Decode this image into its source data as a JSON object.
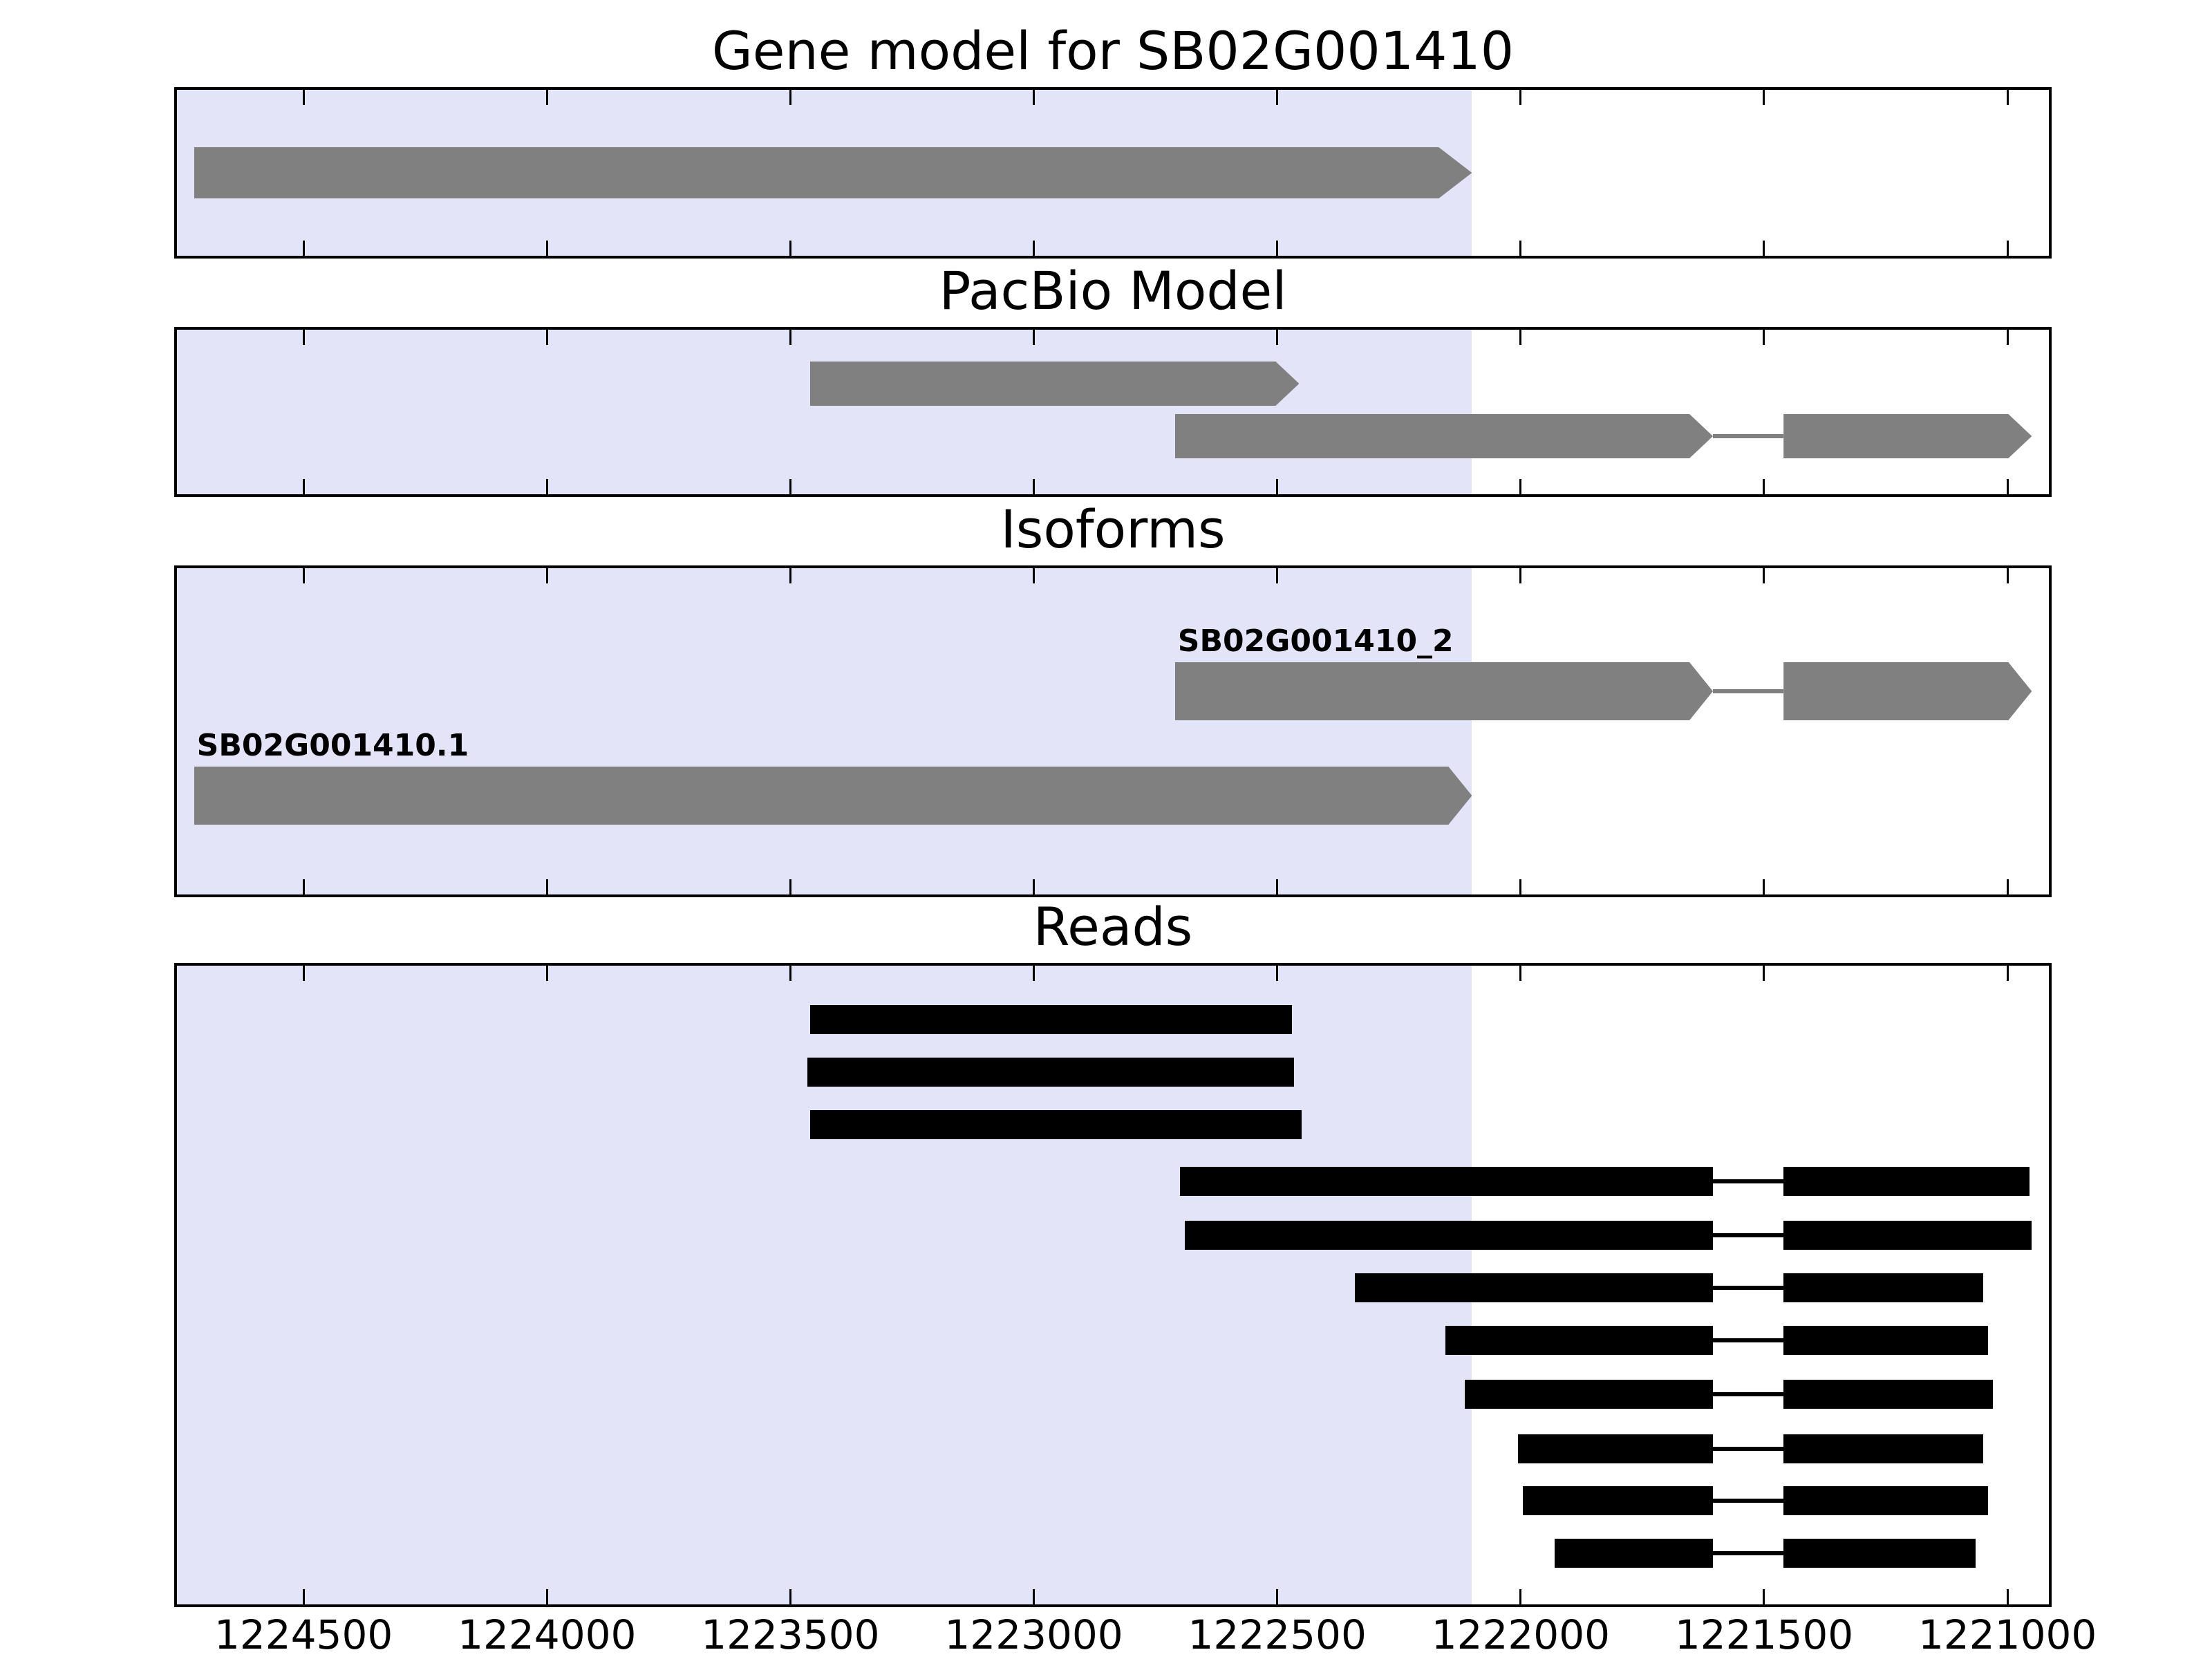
{
  "figure": {
    "colors": {
      "background": "#ffffff",
      "highlight": "#e4e4f8",
      "gene_gray": "#808080",
      "read_black": "#000000",
      "axis_black": "#000000"
    }
  },
  "chart_data": {
    "type": "genome-track-plot",
    "title": "Gene model for SB02G001410",
    "x_range": [
      1224760,
      1220915
    ],
    "x_reversed": true,
    "grid": false,
    "x_ticks": [
      1224500,
      1224000,
      1223500,
      1223000,
      1222500,
      1222000,
      1221500,
      1221000
    ],
    "x_tick_labels": [
      "1224500",
      "1224000",
      "1223500",
      "1223000",
      "1222500",
      "1222000",
      "1221500",
      "1221000"
    ],
    "highlight_span": [
      1224760,
      1222100
    ],
    "tracks": [
      {
        "title": "Gene model for SB02G001410",
        "color": "#808080",
        "feature_kind": "gene-model-arrow",
        "features": [
          {
            "row": 0,
            "exons": [
              [
                1224725,
                1222100
              ]
            ]
          }
        ]
      },
      {
        "title": "PacBio Model",
        "color": "#808080",
        "feature_kind": "pacbio-model-arrow",
        "features": [
          {
            "row": 0,
            "exons": [
              [
                1223460,
                1222455
              ]
            ]
          },
          {
            "row": 1,
            "exons": [
              [
                1222710,
                1221605
              ],
              [
                1221460,
                1220950
              ]
            ]
          }
        ]
      },
      {
        "title": "Isoforms",
        "color": "#808080",
        "feature_kind": "isoform-arrow",
        "features": [
          {
            "row": 0,
            "label": "SB02G001410_2",
            "exons": [
              [
                1222710,
                1221605
              ],
              [
                1221460,
                1220950
              ]
            ]
          },
          {
            "row": 1,
            "label": "SB02G001410.1",
            "exons": [
              [
                1224725,
                1222100
              ]
            ]
          }
        ]
      },
      {
        "title": "Reads",
        "color": "#000000",
        "feature_kind": "read-bar",
        "features": [
          {
            "row": 0,
            "exons": [
              [
                1223460,
                1222470
              ]
            ]
          },
          {
            "row": 1,
            "exons": [
              [
                1223465,
                1222465
              ]
            ]
          },
          {
            "row": 2,
            "exons": [
              [
                1223460,
                1222450
              ]
            ]
          },
          {
            "row": 3,
            "exons": [
              [
                1222700,
                1221605
              ],
              [
                1221460,
                1220955
              ]
            ]
          },
          {
            "row": 4,
            "exons": [
              [
                1222690,
                1221605
              ],
              [
                1221460,
                1220950
              ]
            ]
          },
          {
            "row": 5,
            "exons": [
              [
                1222340,
                1221605
              ],
              [
                1221460,
                1221050
              ]
            ]
          },
          {
            "row": 6,
            "exons": [
              [
                1222155,
                1221605
              ],
              [
                1221460,
                1221040
              ]
            ]
          },
          {
            "row": 7,
            "exons": [
              [
                1222115,
                1221605
              ],
              [
                1221460,
                1221030
              ]
            ]
          },
          {
            "row": 8,
            "exons": [
              [
                1222005,
                1221605
              ],
              [
                1221460,
                1221050
              ]
            ]
          },
          {
            "row": 9,
            "exons": [
              [
                1221995,
                1221605
              ],
              [
                1221460,
                1221040
              ]
            ]
          },
          {
            "row": 10,
            "exons": [
              [
                1221930,
                1221605
              ],
              [
                1221460,
                1221065
              ]
            ]
          }
        ]
      }
    ]
  }
}
